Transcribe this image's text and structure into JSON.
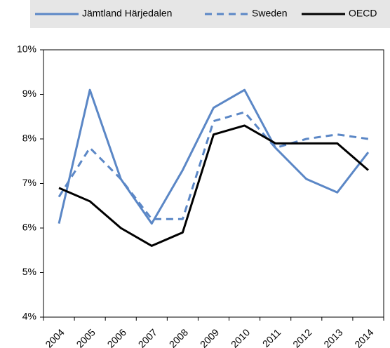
{
  "chart_data": {
    "type": "line",
    "categories": [
      "2004",
      "2005",
      "2006",
      "2007",
      "2008",
      "2009",
      "2010",
      "2011",
      "2012",
      "2013",
      "2014"
    ],
    "series": [
      {
        "name": "Jämtland Härjedalen",
        "color": "#5b87c6",
        "style": "solid",
        "values": [
          6.1,
          9.1,
          7.1,
          6.1,
          7.3,
          8.7,
          9.1,
          7.8,
          7.1,
          6.8,
          7.7
        ]
      },
      {
        "name": "Sweden",
        "color": "#5b87c6",
        "style": "dashed",
        "values": [
          6.7,
          7.8,
          7.1,
          6.2,
          6.2,
          8.4,
          8.6,
          7.8,
          8.0,
          8.1,
          8.0
        ]
      },
      {
        "name": "OECD",
        "color": "#000000",
        "style": "solid",
        "values": [
          6.9,
          6.6,
          6.0,
          5.6,
          5.9,
          8.1,
          8.3,
          7.9,
          7.9,
          7.9,
          7.3
        ]
      }
    ],
    "ylim": [
      4,
      10
    ],
    "yticks": [
      {
        "value": 4,
        "label": "4%"
      },
      {
        "value": 5,
        "label": "5%"
      },
      {
        "value": 6,
        "label": "6%"
      },
      {
        "value": 7,
        "label": "7%"
      },
      {
        "value": 8,
        "label": "8%"
      },
      {
        "value": 9,
        "label": "9%"
      },
      {
        "value": 10,
        "label": "10%"
      }
    ],
    "legend": "top"
  }
}
